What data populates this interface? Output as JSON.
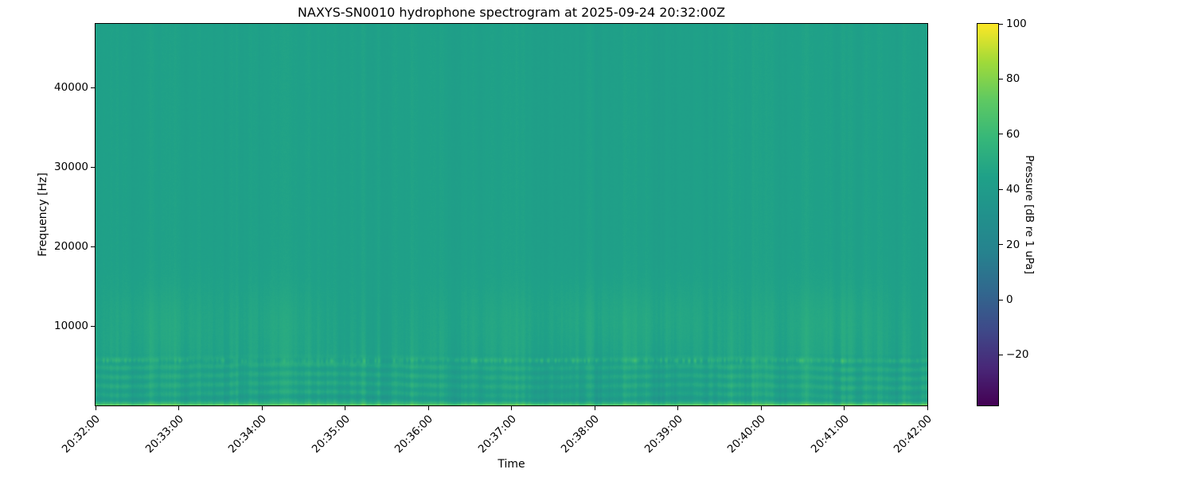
{
  "chart_data": {
    "type": "heatmap",
    "variant": "spectrogram",
    "title": "NAXYS-SN0010 hydrophone spectrogram at 2025-09-24 20:32:00Z",
    "xlabel": "Time",
    "ylabel": "Frequency [Hz]",
    "x_ticks": [
      "20:32:00",
      "20:33:00",
      "20:34:00",
      "20:35:00",
      "20:36:00",
      "20:37:00",
      "20:38:00",
      "20:39:00",
      "20:40:00",
      "20:41:00",
      "20:42:00"
    ],
    "x_tick_rotation_deg": 45,
    "time_span_minutes": 10,
    "y_ticks": [
      10000,
      20000,
      30000,
      40000
    ],
    "freq_range_hz": [
      0,
      48000
    ],
    "grid": false,
    "legend": "none",
    "colorbar": {
      "label": "Pressure [dB re 1 uPa]",
      "ticks": [
        100,
        80,
        60,
        40,
        20,
        0,
        -20
      ],
      "vmin": -38.3,
      "vmax": 100,
      "position": "right"
    },
    "colormap": {
      "name": "viridis",
      "anchors": [
        [
          0.0,
          "#440154"
        ],
        [
          0.1,
          "#482878"
        ],
        [
          0.2,
          "#3e4a89"
        ],
        [
          0.3,
          "#31688e"
        ],
        [
          0.4,
          "#26828e"
        ],
        [
          0.5,
          "#21918c"
        ],
        [
          0.6,
          "#1fa188"
        ],
        [
          0.7,
          "#36b779"
        ],
        [
          0.8,
          "#5ec962"
        ],
        [
          0.9,
          "#a0da39"
        ],
        [
          1.0,
          "#fde725"
        ]
      ]
    },
    "features": {
      "background_level_db": 44.3,
      "low_freq_broad_lift": {
        "max_freq_hz": 16000,
        "extra_db": 1.8
      },
      "surface_noise_band": {
        "max_freq_hz": 650,
        "peak_level_db": 80
      },
      "dip_above_surface": {
        "center_hz": 1150,
        "sigma_hz": 380,
        "depth_db": 3
      },
      "wavy_horizontal_bands": {
        "freq_range_hz": [
          300,
          6800
        ],
        "spacing_hz": 1150,
        "amplitude_db": 4.8
      },
      "tonal_dashed_band": {
        "center_freq_hz": 5650,
        "sigma_hz": 230,
        "peak_db_above_bg": 20,
        "pattern": "intermittent-dashes"
      },
      "vertical_striations": {
        "max_freq_hz": 15500,
        "amplitude_db": 4.4,
        "high_freq_amplitude_db": 1.6
      },
      "diffuse_patches": {
        "freq_center_hz": 10800,
        "sigma_hz": 3300,
        "time_fractions": [
          0.08,
          0.22,
          0.47,
          0.6,
          0.7,
          0.88
        ],
        "amplitudes_db": [
          3.5,
          3.0,
          2.5,
          4.0,
          3.5,
          4.0
        ],
        "width_fractions": [
          0.05,
          0.04,
          0.05,
          0.05,
          0.04,
          0.06
        ]
      },
      "pixel_noise_db": 1.8
    }
  }
}
